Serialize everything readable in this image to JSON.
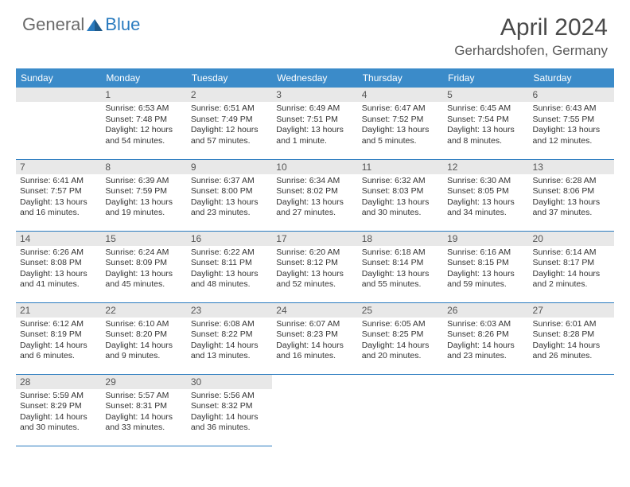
{
  "logo": {
    "text1": "General",
    "text2": "Blue"
  },
  "title": "April 2024",
  "location": "Gerhardshofen, Germany",
  "headers": [
    "Sunday",
    "Monday",
    "Tuesday",
    "Wednesday",
    "Thursday",
    "Friday",
    "Saturday"
  ],
  "header_bg": "#3b8bc9",
  "header_fg": "#ffffff",
  "border_color": "#2a7bbf",
  "daynum_bg": "#e8e8e8",
  "body_font_size": 10.5,
  "title_font_size": 30,
  "location_font_size": 17,
  "weeks": [
    [
      {
        "n": "",
        "blank": true
      },
      {
        "n": "1",
        "sr": "6:53 AM",
        "ss": "7:48 PM",
        "dl": "12 hours and 54 minutes."
      },
      {
        "n": "2",
        "sr": "6:51 AM",
        "ss": "7:49 PM",
        "dl": "12 hours and 57 minutes."
      },
      {
        "n": "3",
        "sr": "6:49 AM",
        "ss": "7:51 PM",
        "dl": "13 hours and 1 minute."
      },
      {
        "n": "4",
        "sr": "6:47 AM",
        "ss": "7:52 PM",
        "dl": "13 hours and 5 minutes."
      },
      {
        "n": "5",
        "sr": "6:45 AM",
        "ss": "7:54 PM",
        "dl": "13 hours and 8 minutes."
      },
      {
        "n": "6",
        "sr": "6:43 AM",
        "ss": "7:55 PM",
        "dl": "13 hours and 12 minutes."
      }
    ],
    [
      {
        "n": "7",
        "sr": "6:41 AM",
        "ss": "7:57 PM",
        "dl": "13 hours and 16 minutes."
      },
      {
        "n": "8",
        "sr": "6:39 AM",
        "ss": "7:59 PM",
        "dl": "13 hours and 19 minutes."
      },
      {
        "n": "9",
        "sr": "6:37 AM",
        "ss": "8:00 PM",
        "dl": "13 hours and 23 minutes."
      },
      {
        "n": "10",
        "sr": "6:34 AM",
        "ss": "8:02 PM",
        "dl": "13 hours and 27 minutes."
      },
      {
        "n": "11",
        "sr": "6:32 AM",
        "ss": "8:03 PM",
        "dl": "13 hours and 30 minutes."
      },
      {
        "n": "12",
        "sr": "6:30 AM",
        "ss": "8:05 PM",
        "dl": "13 hours and 34 minutes."
      },
      {
        "n": "13",
        "sr": "6:28 AM",
        "ss": "8:06 PM",
        "dl": "13 hours and 37 minutes."
      }
    ],
    [
      {
        "n": "14",
        "sr": "6:26 AM",
        "ss": "8:08 PM",
        "dl": "13 hours and 41 minutes."
      },
      {
        "n": "15",
        "sr": "6:24 AM",
        "ss": "8:09 PM",
        "dl": "13 hours and 45 minutes."
      },
      {
        "n": "16",
        "sr": "6:22 AM",
        "ss": "8:11 PM",
        "dl": "13 hours and 48 minutes."
      },
      {
        "n": "17",
        "sr": "6:20 AM",
        "ss": "8:12 PM",
        "dl": "13 hours and 52 minutes."
      },
      {
        "n": "18",
        "sr": "6:18 AM",
        "ss": "8:14 PM",
        "dl": "13 hours and 55 minutes."
      },
      {
        "n": "19",
        "sr": "6:16 AM",
        "ss": "8:15 PM",
        "dl": "13 hours and 59 minutes."
      },
      {
        "n": "20",
        "sr": "6:14 AM",
        "ss": "8:17 PM",
        "dl": "14 hours and 2 minutes."
      }
    ],
    [
      {
        "n": "21",
        "sr": "6:12 AM",
        "ss": "8:19 PM",
        "dl": "14 hours and 6 minutes."
      },
      {
        "n": "22",
        "sr": "6:10 AM",
        "ss": "8:20 PM",
        "dl": "14 hours and 9 minutes."
      },
      {
        "n": "23",
        "sr": "6:08 AM",
        "ss": "8:22 PM",
        "dl": "14 hours and 13 minutes."
      },
      {
        "n": "24",
        "sr": "6:07 AM",
        "ss": "8:23 PM",
        "dl": "14 hours and 16 minutes."
      },
      {
        "n": "25",
        "sr": "6:05 AM",
        "ss": "8:25 PM",
        "dl": "14 hours and 20 minutes."
      },
      {
        "n": "26",
        "sr": "6:03 AM",
        "ss": "8:26 PM",
        "dl": "14 hours and 23 minutes."
      },
      {
        "n": "27",
        "sr": "6:01 AM",
        "ss": "8:28 PM",
        "dl": "14 hours and 26 minutes."
      }
    ],
    [
      {
        "n": "28",
        "sr": "5:59 AM",
        "ss": "8:29 PM",
        "dl": "14 hours and 30 minutes."
      },
      {
        "n": "29",
        "sr": "5:57 AM",
        "ss": "8:31 PM",
        "dl": "14 hours and 33 minutes."
      },
      {
        "n": "30",
        "sr": "5:56 AM",
        "ss": "8:32 PM",
        "dl": "14 hours and 36 minutes."
      },
      {
        "n": "",
        "blank": true
      },
      {
        "n": "",
        "blank": true
      },
      {
        "n": "",
        "blank": true
      },
      {
        "n": "",
        "blank": true
      }
    ]
  ],
  "labels": {
    "sunrise": "Sunrise:",
    "sunset": "Sunset:",
    "daylight": "Daylight:"
  }
}
